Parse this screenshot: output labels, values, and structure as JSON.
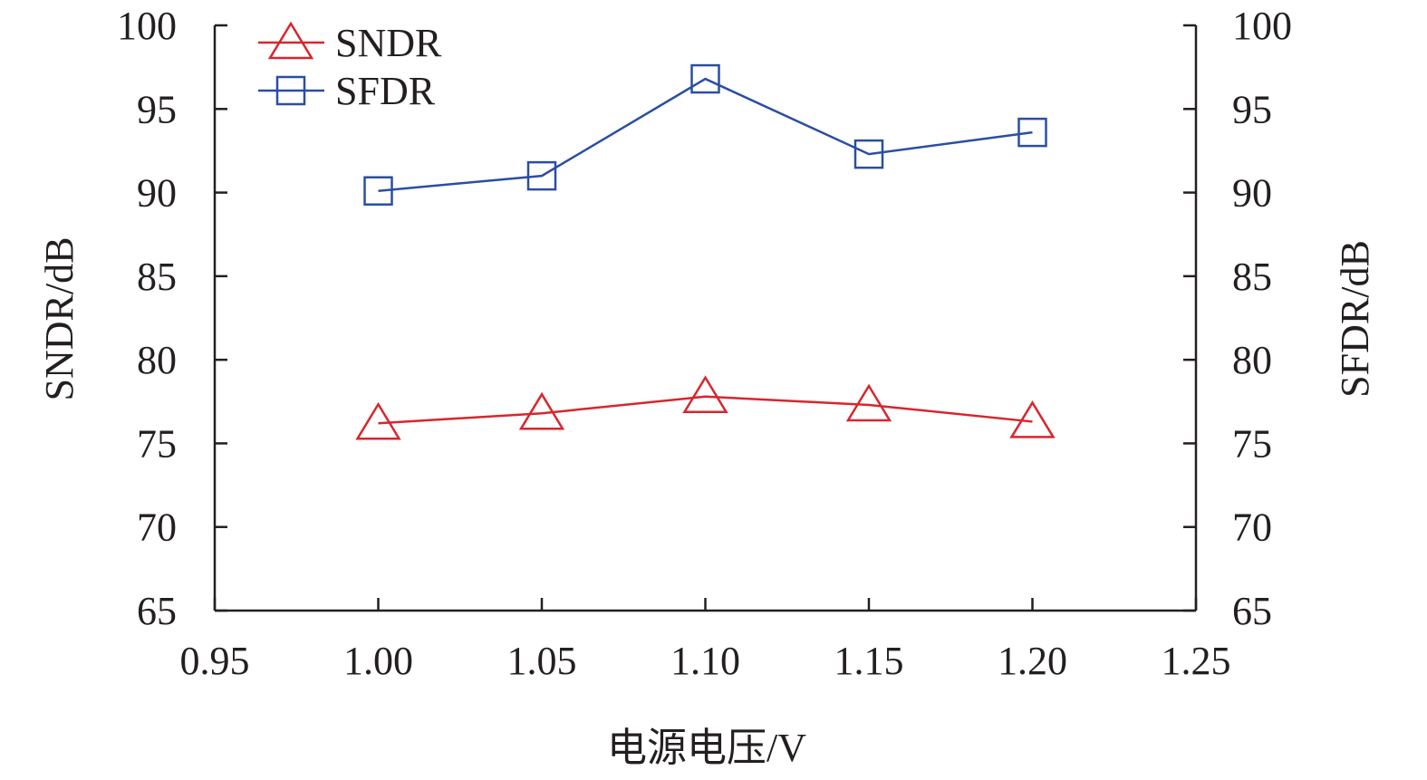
{
  "chart_data": {
    "type": "line",
    "title": "",
    "xlabel": "电源电压/V",
    "ylabel_left": "SNDR/dB",
    "ylabel_right": "SFDR/dB",
    "xlim": [
      0.95,
      1.25
    ],
    "ylim": [
      65,
      100
    ],
    "x_ticks": [
      "0.95",
      "1.00",
      "1.05",
      "1.10",
      "1.15",
      "1.20",
      "1.25"
    ],
    "x_tick_values": [
      0.95,
      1.0,
      1.05,
      1.1,
      1.15,
      1.2,
      1.25
    ],
    "y_ticks": [
      "65",
      "70",
      "75",
      "80",
      "85",
      "90",
      "95",
      "100"
    ],
    "y_tick_values": [
      65,
      70,
      75,
      80,
      85,
      90,
      95,
      100
    ],
    "grid": false,
    "legend_position": "top-left",
    "x": [
      1.0,
      1.05,
      1.1,
      1.15,
      1.2
    ],
    "series": [
      {
        "name": "SNDR",
        "marker": "triangle",
        "color": "#d7262e",
        "values": [
          76.2,
          76.8,
          77.8,
          77.3,
          76.3
        ]
      },
      {
        "name": "SFDR",
        "marker": "square",
        "color": "#2b4ea2",
        "values": [
          90.1,
          91.0,
          96.8,
          92.3,
          93.6
        ]
      }
    ]
  }
}
